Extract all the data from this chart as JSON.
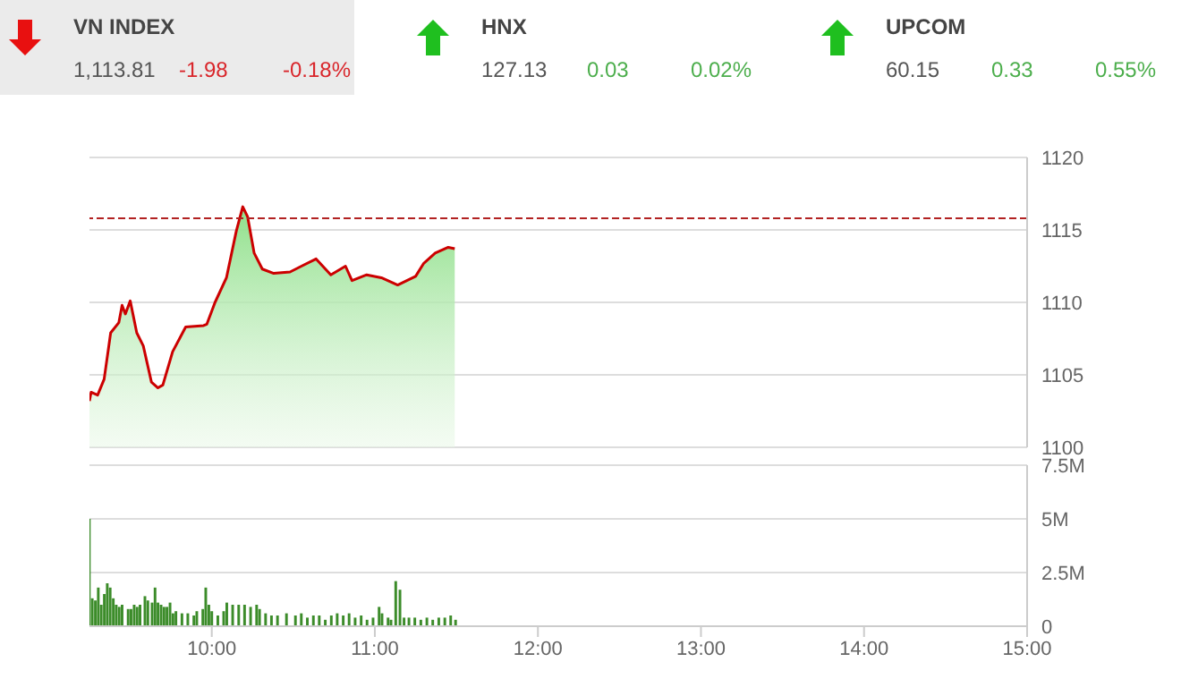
{
  "chart_data": [
    {
      "type": "other",
      "annotations": [
        "VN INDEX",
        "1,113.81",
        "-1.98",
        "-0.18%",
        "HNX",
        "127.13",
        "0.03",
        "0.02%",
        "UPCOM",
        "60.15",
        "0.33",
        "0.55%"
      ]
    },
    {
      "type": "area",
      "x": [
        9.25,
        9.26,
        9.3,
        9.34,
        9.38,
        9.43,
        9.45,
        9.47,
        9.5,
        9.54,
        9.58,
        9.63,
        9.67,
        9.7,
        9.76,
        9.84,
        9.95,
        9.97,
        10.02,
        10.09,
        10.15,
        10.19,
        10.22,
        10.26,
        10.31,
        10.38,
        10.48,
        10.55,
        10.64,
        10.73,
        10.82,
        10.86,
        10.95,
        11.04,
        11.14,
        11.25,
        11.3,
        11.37,
        11.45,
        11.49
      ],
      "series": [
        {
          "color": "#cc0000",
          "values": [
            1103.2,
            1103.8,
            1103.6,
            1104.7,
            1107.9,
            1108.6,
            1109.8,
            1109.2,
            1110.1,
            1107.9,
            1107.0,
            1104.5,
            1104.1,
            1104.3,
            1106.6,
            1108.3,
            1108.4,
            1108.5,
            1110.0,
            1111.7,
            1114.9,
            1116.6,
            1115.9,
            1113.4,
            1112.3,
            1112.0,
            1112.1,
            1112.5,
            1113.0,
            1111.9,
            1112.5,
            1111.5,
            1111.9,
            1111.7,
            1111.2,
            1111.8,
            1112.7,
            1113.4,
            1113.8,
            1113.7
          ]
        }
      ],
      "xlim": [
        9.25,
        15
      ],
      "ylim": [
        1100,
        1120
      ],
      "yticks": [
        1100,
        1105,
        1110,
        1115,
        1120
      ],
      "grid": "y",
      "tick_labels": "y",
      "ref_lines": [
        {
          "axis": "y",
          "value": 1115.8,
          "color": "#b22222",
          "line_style": "dashed"
        }
      ]
    },
    {
      "type": "bar",
      "color": "#3c8c2a",
      "x": [
        9.25,
        9.268,
        9.287,
        9.305,
        9.323,
        9.342,
        9.36,
        9.378,
        9.397,
        9.415,
        9.433,
        9.451,
        9.488,
        9.506,
        9.525,
        9.543,
        9.561,
        9.591,
        9.609,
        9.635,
        9.653,
        9.671,
        9.69,
        9.708,
        9.726,
        9.745,
        9.763,
        9.781,
        9.818,
        9.854,
        9.891,
        9.909,
        9.946,
        9.964,
        9.983,
        10.001,
        10.038,
        10.074,
        10.093,
        10.129,
        10.166,
        10.202,
        10.239,
        10.276,
        10.294,
        10.331,
        10.367,
        10.404,
        10.459,
        10.514,
        10.55,
        10.587,
        10.624,
        10.66,
        10.697,
        10.734,
        10.77,
        10.807,
        10.843,
        10.88,
        10.917,
        10.953,
        10.99,
        11.027,
        11.045,
        11.082,
        11.1,
        11.129,
        11.155,
        11.18,
        11.21,
        11.246,
        11.283,
        11.32,
        11.356,
        11.393,
        11.43,
        11.466,
        11.496
      ],
      "values": [
        5.0,
        1.3,
        1.2,
        1.8,
        1.0,
        1.5,
        2.0,
        1.8,
        1.3,
        1.0,
        0.9,
        1.0,
        0.8,
        0.8,
        1.0,
        0.9,
        1.0,
        1.4,
        1.2,
        1.1,
        1.8,
        1.1,
        1.0,
        0.9,
        0.9,
        1.1,
        0.6,
        0.7,
        0.6,
        0.6,
        0.5,
        0.7,
        0.8,
        1.8,
        1.0,
        0.7,
        0.5,
        0.7,
        1.1,
        1.0,
        1.0,
        1.0,
        0.9,
        1.0,
        0.8,
        0.6,
        0.5,
        0.5,
        0.6,
        0.5,
        0.6,
        0.4,
        0.5,
        0.5,
        0.3,
        0.5,
        0.6,
        0.5,
        0.6,
        0.4,
        0.5,
        0.3,
        0.4,
        0.9,
        0.6,
        0.4,
        0.3,
        2.1,
        1.7,
        0.4,
        0.4,
        0.4,
        0.3,
        0.4,
        0.3,
        0.4,
        0.4,
        0.5,
        0.3
      ],
      "xlim": [
        9.25,
        15
      ],
      "xticks": [
        {
          "value": 10,
          "label": "10:00"
        },
        {
          "value": 11,
          "label": "11:00"
        },
        {
          "value": 12,
          "label": "12:00"
        },
        {
          "value": 13,
          "label": "13:00"
        },
        {
          "value": 14,
          "label": "14:00"
        },
        {
          "value": 15,
          "label": "15:00"
        }
      ],
      "ylim": [
        0,
        7.5
      ],
      "yticks": [
        {
          "value": 0,
          "label": "0"
        },
        {
          "value": 2.5,
          "label": "2.5M"
        },
        {
          "value": 5,
          "label": "5M"
        },
        {
          "value": 7.5,
          "label": "7.5M"
        }
      ],
      "grid": "y"
    }
  ]
}
